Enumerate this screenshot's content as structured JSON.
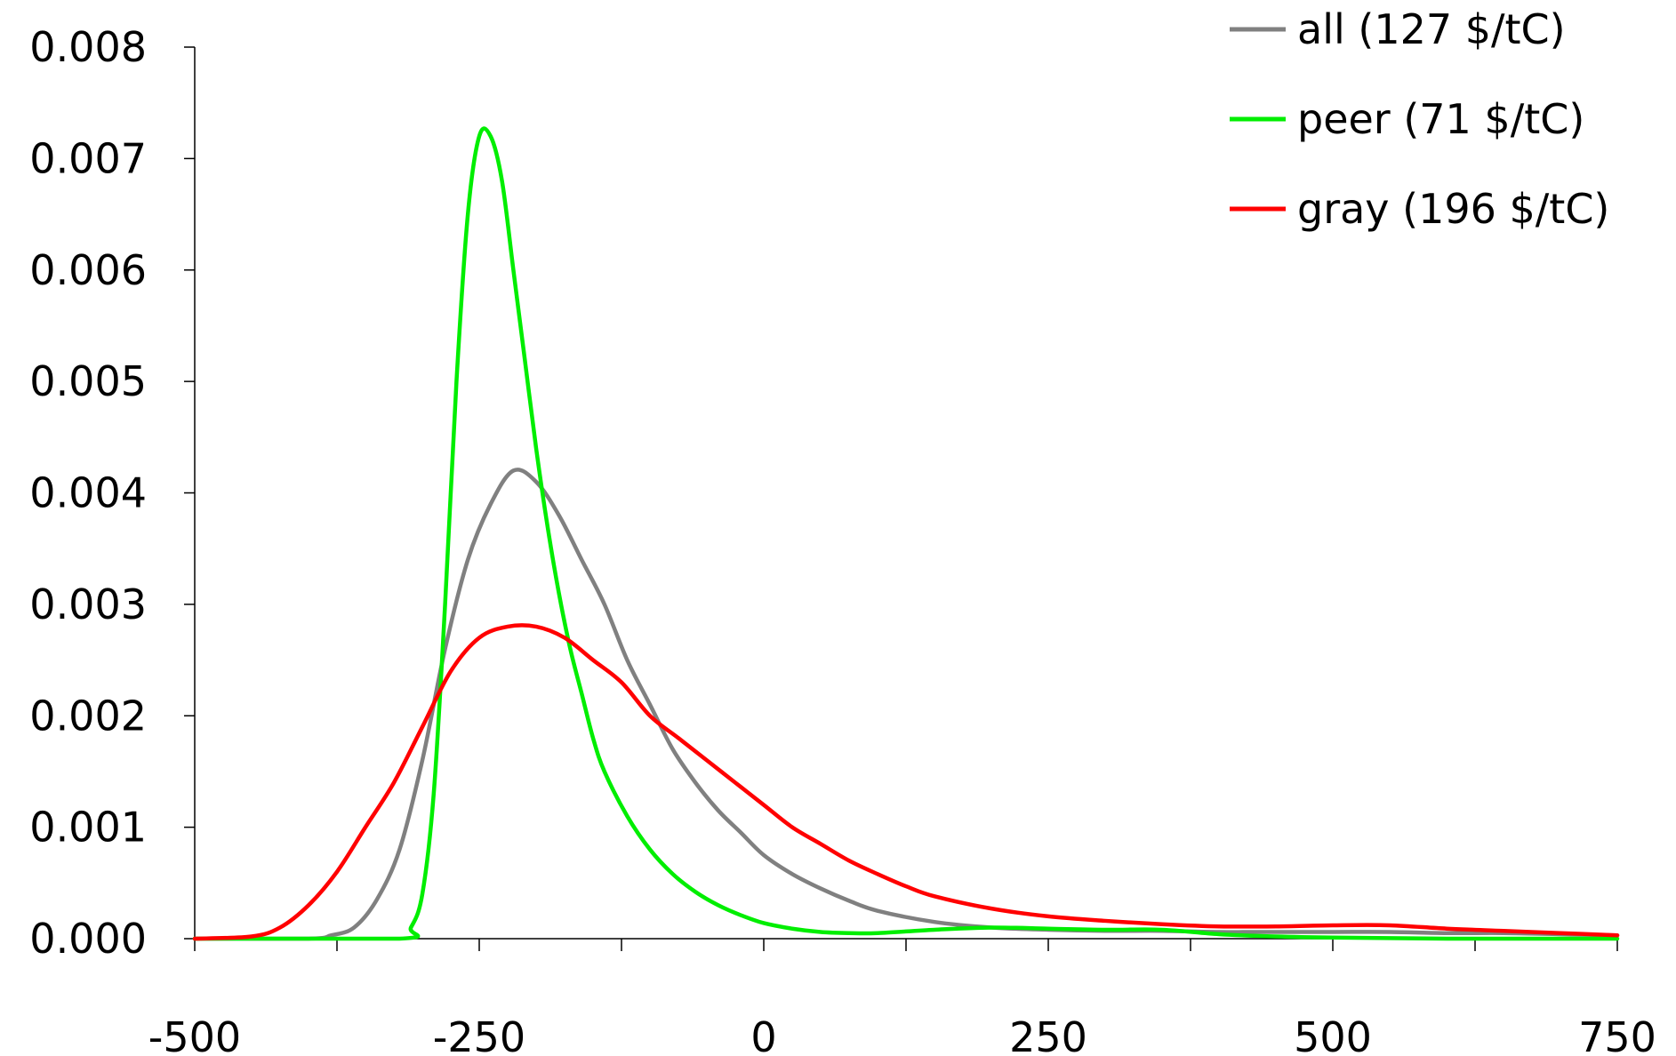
{
  "chart_data": {
    "type": "line",
    "title": "",
    "xlabel": "",
    "ylabel": "",
    "xlim": [
      -500,
      750
    ],
    "ylim": [
      0,
      0.008
    ],
    "x_ticks": [
      -500,
      -250,
      0,
      250,
      500,
      750
    ],
    "x_tick_labels": [
      "-500",
      "-250",
      "0",
      "250",
      "500",
      "750"
    ],
    "x_minor_ticks": [
      -500,
      -375,
      -250,
      -125,
      0,
      125,
      250,
      375,
      500,
      625,
      750
    ],
    "y_ticks": [
      0,
      0.001,
      0.002,
      0.003,
      0.004,
      0.005,
      0.006,
      0.007,
      0.008
    ],
    "y_tick_labels": [
      "0.000",
      "0.001",
      "0.002",
      "0.003",
      "0.004",
      "0.005",
      "0.006",
      "0.007",
      "0.008"
    ],
    "grid": false,
    "legend_position": "top-right",
    "series": [
      {
        "name": "all (127 $/tC)",
        "color": "#808080",
        "x": [
          -500,
          -400,
          -380,
          -360,
          -340,
          -320,
          -300,
          -280,
          -260,
          -240,
          -220,
          -200,
          -180,
          -160,
          -140,
          -120,
          -100,
          -80,
          -60,
          -40,
          -20,
          0,
          25,
          50,
          75,
          100,
          150,
          200,
          250,
          300,
          350,
          400,
          450,
          500,
          550,
          600,
          650,
          700,
          750
        ],
        "y": [
          0,
          0,
          3e-05,
          0.0001,
          0.00035,
          0.0008,
          0.0016,
          0.0026,
          0.0034,
          0.0039,
          0.0042,
          0.0041,
          0.0038,
          0.0034,
          0.003,
          0.0025,
          0.0021,
          0.0017,
          0.0014,
          0.00115,
          0.00095,
          0.00075,
          0.00058,
          0.00045,
          0.00034,
          0.00025,
          0.00015,
          0.0001,
          8e-05,
          7e-05,
          7e-05,
          6e-05,
          6e-05,
          6e-05,
          6e-05,
          5e-05,
          5e-05,
          4e-05,
          3e-05
        ]
      },
      {
        "name": "peer (71 $/tC)",
        "color": "#00ee00",
        "x": [
          -500,
          -320,
          -310,
          -300,
          -290,
          -280,
          -270,
          -260,
          -250,
          -240,
          -230,
          -220,
          -210,
          -200,
          -190,
          -180,
          -170,
          -160,
          -150,
          -140,
          -120,
          -100,
          -80,
          -60,
          -40,
          -20,
          0,
          25,
          50,
          75,
          100,
          150,
          200,
          250,
          300,
          350,
          400,
          450,
          500,
          600,
          750
        ],
        "y": [
          0,
          0,
          0.0001,
          0.0004,
          0.0013,
          0.003,
          0.005,
          0.0065,
          0.0072,
          0.0072,
          0.0068,
          0.006,
          0.0052,
          0.0044,
          0.0037,
          0.0031,
          0.0026,
          0.0022,
          0.0018,
          0.0015,
          0.0011,
          0.0008,
          0.00058,
          0.00042,
          0.0003,
          0.00021,
          0.00014,
          9e-05,
          6e-05,
          5e-05,
          5e-05,
          8e-05,
          0.0001,
          9e-05,
          8e-05,
          8e-05,
          4e-05,
          2e-05,
          1e-05,
          0,
          0
        ]
      },
      {
        "name": "gray (196 $/tC)",
        "color": "#ff0000",
        "x": [
          -500,
          -450,
          -425,
          -400,
          -375,
          -350,
          -325,
          -300,
          -275,
          -250,
          -225,
          -200,
          -175,
          -150,
          -125,
          -100,
          -75,
          -50,
          -25,
          0,
          25,
          50,
          75,
          100,
          125,
          150,
          200,
          250,
          300,
          350,
          400,
          450,
          500,
          550,
          600,
          650,
          700,
          750
        ],
        "y": [
          0,
          2e-05,
          0.0001,
          0.0003,
          0.0006,
          0.001,
          0.0014,
          0.0019,
          0.0024,
          0.0027,
          0.0028,
          0.0028,
          0.0027,
          0.0025,
          0.0023,
          0.002,
          0.0018,
          0.0016,
          0.0014,
          0.0012,
          0.001,
          0.00085,
          0.0007,
          0.00058,
          0.00047,
          0.00038,
          0.00027,
          0.0002,
          0.00016,
          0.00013,
          0.00011,
          0.00011,
          0.00012,
          0.00012,
          9e-05,
          7e-05,
          5e-05,
          3e-05
        ]
      }
    ]
  }
}
